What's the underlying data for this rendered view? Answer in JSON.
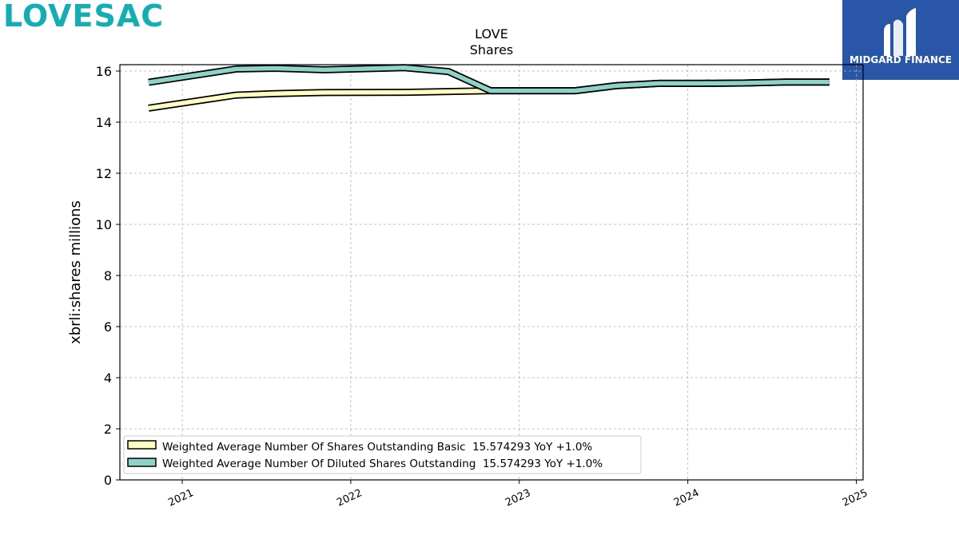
{
  "header": {
    "logo_text": "LOVESAC",
    "brand_name": "MIDGARD FINANCE",
    "brand_color": "#2a56a8",
    "logo_color": "#12aeb4"
  },
  "chart_data": {
    "type": "line",
    "title": "LOVE",
    "subtitle": "Shares",
    "ylabel": "xbrli:shares millions",
    "xlabel": "",
    "ylim": [
      0,
      16.25
    ],
    "xlim": [
      2020.63,
      2025.04
    ],
    "y_ticks": [
      0,
      2,
      4,
      6,
      8,
      10,
      12,
      14,
      16
    ],
    "x_ticks": [
      "2021",
      "2022",
      "2023",
      "2024",
      "2025"
    ],
    "grid": true,
    "legend_position": "lower-left",
    "series": [
      {
        "name": "Weighted Average Number Of Shares Outstanding Basic  15.574293 YoY +1.0%",
        "color": "#ffffc0",
        "x": [
          2020.8,
          2021.32,
          2021.55,
          2021.84,
          2022.32,
          2022.58,
          2022.83,
          2023.08,
          2023.33,
          2023.58,
          2023.83,
          2024.08,
          2024.33,
          2024.58,
          2024.84
        ],
        "y": [
          14.55,
          15.06,
          15.12,
          15.16,
          15.17,
          15.2,
          15.23,
          15.23,
          15.23,
          15.43,
          15.52,
          15.52,
          15.53,
          15.57,
          15.57
        ]
      },
      {
        "name": "Weighted Average Number Of Diluted Shares Outstanding  15.574293 YoY +1.0%",
        "color": "#8dd3c7",
        "x": [
          2020.8,
          2021.32,
          2021.55,
          2021.84,
          2022.32,
          2022.58,
          2022.83,
          2023.08,
          2023.33,
          2023.58,
          2023.83,
          2024.08,
          2024.33,
          2024.58,
          2024.84
        ],
        "y": [
          15.56,
          16.08,
          16.11,
          16.05,
          16.13,
          15.98,
          15.23,
          15.23,
          15.23,
          15.43,
          15.52,
          15.52,
          15.53,
          15.57,
          15.57
        ]
      }
    ]
  }
}
